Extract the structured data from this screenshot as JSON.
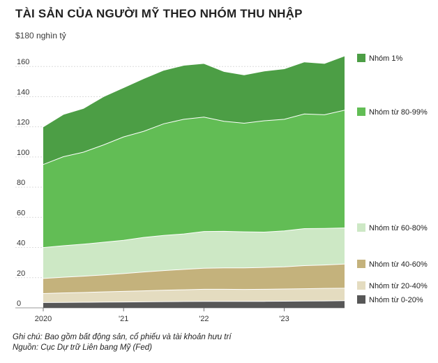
{
  "header": {
    "title": "TÀI SẢN CỦA NGƯỜI MỸ THEO NHÓM THU NHẬP",
    "unit_currency": "$180",
    "unit_text": "nghìn tỷ"
  },
  "notes": {
    "note_line": "Ghi chú: Bao gồm bất động sản, cổ phiếu và tài khoản hưu trí",
    "source_line": "Nguồn: Cục Dự trữ Liên bang Mỹ (Fed)"
  },
  "chart_data": {
    "type": "area",
    "stacked": true,
    "ylim": [
      0,
      180
    ],
    "yticks": [
      0,
      20,
      40,
      60,
      80,
      100,
      120,
      140,
      160
    ],
    "ytick_labels": [
      "0",
      "20",
      "40",
      "60",
      "80",
      "100",
      "120",
      "140",
      "160"
    ],
    "xlim": [
      2020.0,
      2023.75
    ],
    "xticks": [
      2020.0,
      2021.0,
      2022.0,
      2023.0
    ],
    "xtick_labels": [
      "2020",
      "'21",
      "'22",
      "'23"
    ],
    "grid": true,
    "legend_placement": "right",
    "x": [
      2020.0,
      2020.25,
      2020.5,
      2020.75,
      2021.0,
      2021.25,
      2021.5,
      2021.75,
      2022.0,
      2022.25,
      2022.5,
      2022.75,
      2023.0,
      2023.25,
      2023.5,
      2023.75
    ],
    "series": [
      {
        "name": "Nhóm từ 0-20%",
        "color": "#575757",
        "values": [
          3.5,
          3.6,
          3.7,
          3.8,
          3.9,
          4.0,
          4.1,
          4.2,
          4.3,
          4.3,
          4.3,
          4.3,
          4.4,
          4.5,
          4.6,
          4.7
        ]
      },
      {
        "name": "Nhóm từ 20-40%",
        "color": "#e4dcc0",
        "values": [
          6.0,
          6.3,
          6.5,
          6.8,
          7.0,
          7.3,
          7.6,
          7.8,
          8.0,
          8.0,
          7.9,
          8.0,
          8.1,
          8.2,
          8.3,
          8.3
        ]
      },
      {
        "name": "Nhóm từ 40-60%",
        "color": "#c4b27c",
        "values": [
          10.0,
          10.4,
          10.8,
          11.2,
          11.8,
          12.5,
          13.0,
          13.5,
          14.0,
          14.2,
          14.3,
          14.5,
          14.7,
          15.3,
          15.5,
          16.0
        ]
      },
      {
        "name": "Nhóm từ 60-80%",
        "color": "#cde8c5",
        "values": [
          20.5,
          20.9,
          21.2,
          21.7,
          22.1,
          22.9,
          23.3,
          23.5,
          24.3,
          24.2,
          23.9,
          23.4,
          23.8,
          24.5,
          24.2,
          24.0
        ]
      },
      {
        "name": "Nhóm từ 80-99%",
        "color": "#62bd55",
        "values": [
          55.0,
          59.0,
          61.0,
          64.5,
          68.5,
          70.3,
          74.0,
          76.0,
          75.8,
          73.0,
          72.0,
          73.8,
          74.0,
          76.0,
          75.4,
          78.0
        ]
      },
      {
        "name": "Nhóm 1%",
        "color": "#4c9e45",
        "values": [
          25.0,
          28.0,
          29.0,
          32.0,
          32.7,
          35.0,
          35.5,
          35.8,
          35.6,
          33.0,
          32.0,
          33.0,
          33.5,
          34.5,
          34.0,
          36.0
        ]
      }
    ]
  }
}
